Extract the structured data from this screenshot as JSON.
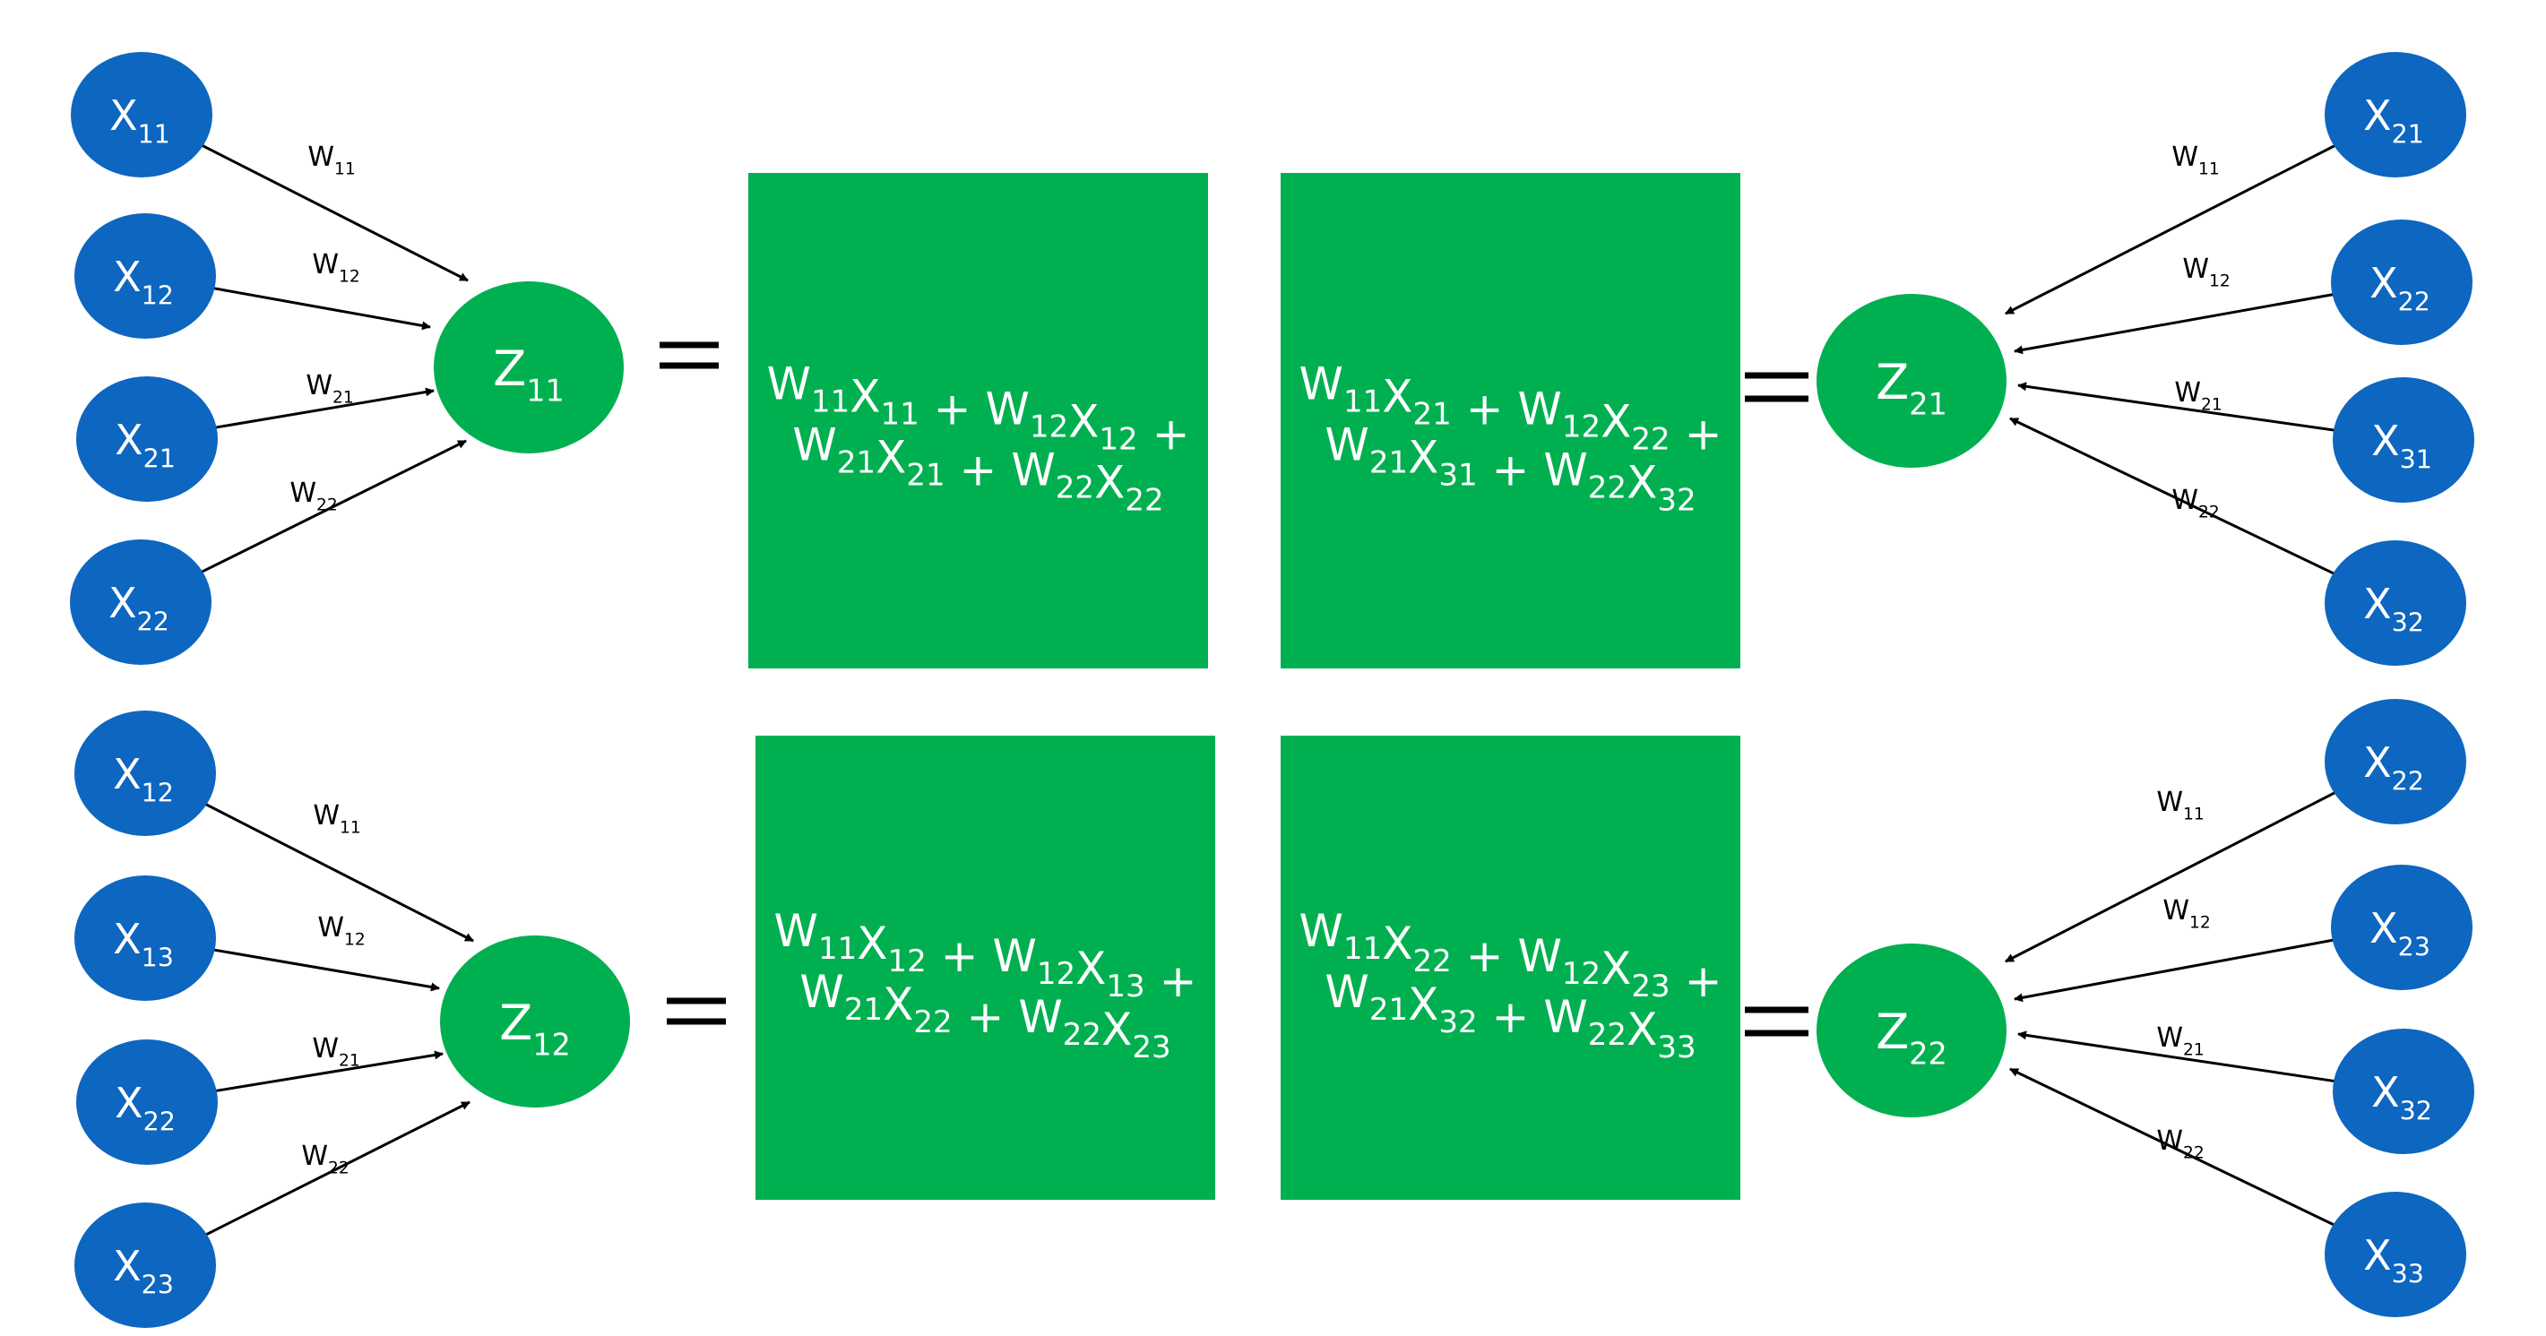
{
  "colors": {
    "input_node": "#0d66bf",
    "output_node": "#00b050",
    "box": "#00b050",
    "edge": "#000000"
  },
  "blocks": [
    {
      "id": "z11",
      "side": "left",
      "output": {
        "base": "Z",
        "sub": "11"
      },
      "inputs": [
        {
          "base": "X",
          "sub": "11"
        },
        {
          "base": "X",
          "sub": "12"
        },
        {
          "base": "X",
          "sub": "21"
        },
        {
          "base": "X",
          "sub": "22"
        }
      ],
      "weights": [
        {
          "base": "W",
          "sub": "11"
        },
        {
          "base": "W",
          "sub": "12"
        },
        {
          "base": "W",
          "sub": "21"
        },
        {
          "base": "W",
          "sub": "22"
        }
      ],
      "equation": [
        [
          [
            "W",
            "11"
          ],
          [
            "X",
            "11"
          ],
          [
            "+"
          ],
          [
            "W",
            "12"
          ],
          [
            "X",
            "12"
          ],
          [
            "+"
          ]
        ],
        [
          [
            "W",
            "21"
          ],
          [
            "X",
            "21"
          ],
          [
            "+"
          ],
          [
            "W",
            "22"
          ],
          [
            "X",
            "22"
          ]
        ]
      ]
    },
    {
      "id": "z21",
      "side": "right",
      "output": {
        "base": "Z",
        "sub": "21"
      },
      "inputs": [
        {
          "base": "X",
          "sub": "21"
        },
        {
          "base": "X",
          "sub": "22"
        },
        {
          "base": "X",
          "sub": "31"
        },
        {
          "base": "X",
          "sub": "32"
        }
      ],
      "weights": [
        {
          "base": "W",
          "sub": "11"
        },
        {
          "base": "W",
          "sub": "12"
        },
        {
          "base": "W",
          "sub": "21"
        },
        {
          "base": "W",
          "sub": "22"
        }
      ],
      "equation": [
        [
          [
            "W",
            "11"
          ],
          [
            "X",
            "21"
          ],
          [
            "+"
          ],
          [
            "W",
            "12"
          ],
          [
            "X",
            "22"
          ],
          [
            "+"
          ]
        ],
        [
          [
            "W",
            "21"
          ],
          [
            "X",
            "31"
          ],
          [
            "+"
          ],
          [
            "W",
            "22"
          ],
          [
            "X",
            "32"
          ]
        ]
      ]
    },
    {
      "id": "z12",
      "side": "left",
      "output": {
        "base": "Z",
        "sub": "12"
      },
      "inputs": [
        {
          "base": "X",
          "sub": "12"
        },
        {
          "base": "X",
          "sub": "13"
        },
        {
          "base": "X",
          "sub": "22"
        },
        {
          "base": "X",
          "sub": "23"
        }
      ],
      "weights": [
        {
          "base": "W",
          "sub": "11"
        },
        {
          "base": "W",
          "sub": "12"
        },
        {
          "base": "W",
          "sub": "21"
        },
        {
          "base": "W",
          "sub": "22"
        }
      ],
      "equation": [
        [
          [
            "W",
            "11"
          ],
          [
            "X",
            "12"
          ],
          [
            "+"
          ],
          [
            "W",
            "12"
          ],
          [
            "X",
            "13"
          ],
          [
            "+"
          ]
        ],
        [
          [
            "W",
            "21"
          ],
          [
            "X",
            "22"
          ],
          [
            "+"
          ],
          [
            "W",
            "22"
          ],
          [
            "X",
            "23"
          ]
        ]
      ]
    },
    {
      "id": "z22",
      "side": "right",
      "output": {
        "base": "Z",
        "sub": "22"
      },
      "inputs": [
        {
          "base": "X",
          "sub": "22"
        },
        {
          "base": "X",
          "sub": "23"
        },
        {
          "base": "X",
          "sub": "32"
        },
        {
          "base": "X",
          "sub": "33"
        }
      ],
      "weights": [
        {
          "base": "W",
          "sub": "11"
        },
        {
          "base": "W",
          "sub": "12"
        },
        {
          "base": "W",
          "sub": "21"
        },
        {
          "base": "W",
          "sub": "22"
        }
      ],
      "equation": [
        [
          [
            "W",
            "11"
          ],
          [
            "X",
            "22"
          ],
          [
            "+"
          ],
          [
            "W",
            "12"
          ],
          [
            "X",
            "23"
          ],
          [
            "+"
          ]
        ],
        [
          [
            "W",
            "21"
          ],
          [
            "X",
            "32"
          ],
          [
            "+"
          ],
          [
            "W",
            "22"
          ],
          [
            "X",
            "33"
          ]
        ]
      ]
    }
  ]
}
